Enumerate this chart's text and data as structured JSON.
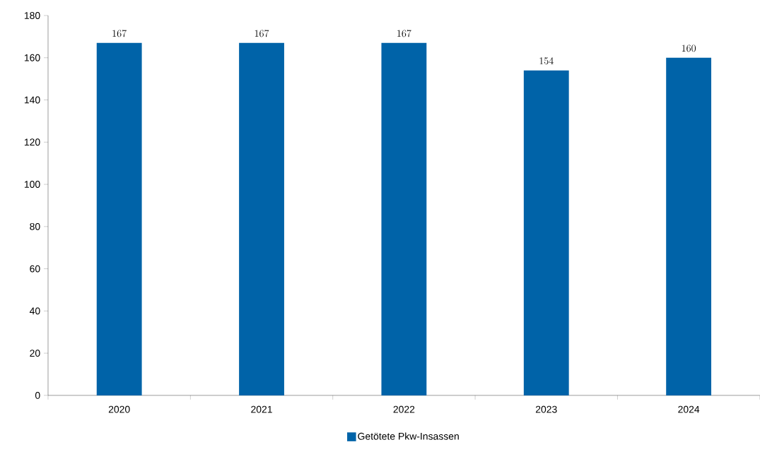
{
  "chart_data": {
    "type": "bar",
    "categories": [
      "2020",
      "2021",
      "2022",
      "2023",
      "2024"
    ],
    "series": [
      {
        "name": "Getötete Pkw-Insassen",
        "color": "#0063a8",
        "values": [
          167,
          167,
          167,
          154,
          160
        ]
      }
    ],
    "ylim": [
      0,
      180
    ],
    "yticks": [
      0,
      20,
      40,
      60,
      80,
      100,
      120,
      140,
      160,
      180
    ],
    "data_labels": true,
    "legend": "bottom",
    "grid": false
  }
}
